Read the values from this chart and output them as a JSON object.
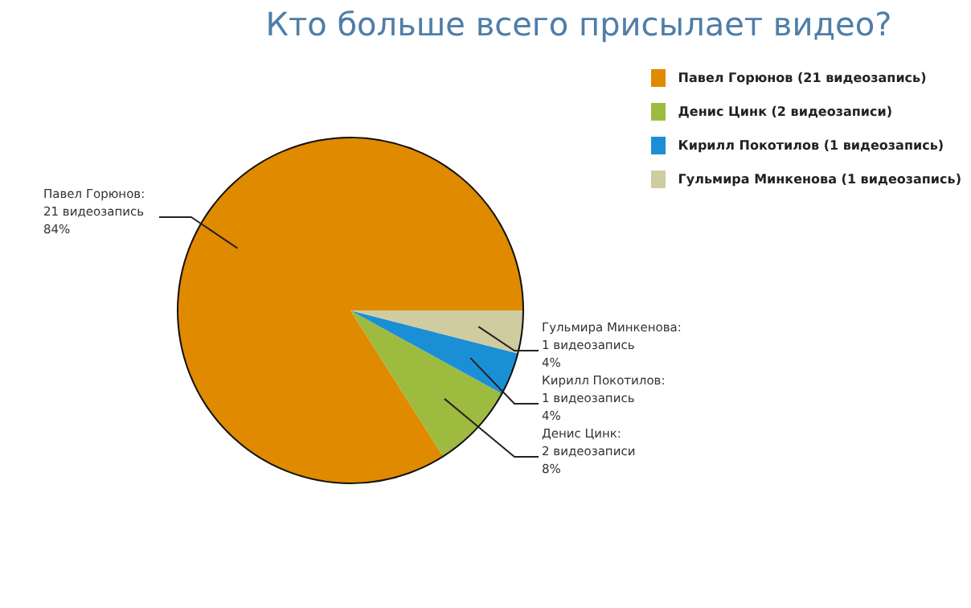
{
  "chart_data": {
    "type": "pie",
    "title": "Кто больше всего присылает видео?",
    "categories": [
      "Павел Горюнов (21 видеозапись)",
      "Денис Цинк (2 видеозаписи)",
      "Кирилл Покотилов (1 видеозапись)",
      "Гульмира Минкенова (1 видеозапись)"
    ],
    "values": [
      21,
      2,
      1,
      1
    ],
    "colors": [
      "#e08a00",
      "#9dbb3f",
      "#1b8fd6",
      "#cfcca0"
    ],
    "value_labels": [
      "Павел Горюнов:\n21 видеозапись\n84%",
      "Денис Цинк:\n2 видеозаписи\n8%",
      "Кирилл Покотилов:\n1 видеозапись\n4%",
      "Гульмира Минкенова:\n1 видеозапись\n4%"
    ],
    "legend": "top right"
  }
}
